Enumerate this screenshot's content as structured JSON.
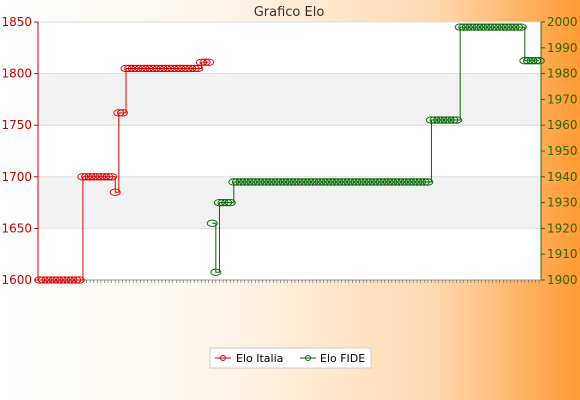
{
  "chart_data": {
    "type": "line",
    "title": "Grafico Elo",
    "xlabel": "",
    "ylabel": "",
    "y_left": {
      "min": 1600,
      "max": 1850,
      "ticks": [
        1600,
        1650,
        1700,
        1750,
        1800,
        1850
      ],
      "color": "#cc0000"
    },
    "y_right": {
      "min": 1900,
      "max": 2000,
      "ticks": [
        1900,
        1910,
        1920,
        1930,
        1940,
        1950,
        1960,
        1970,
        1980,
        1990,
        2000
      ],
      "color": "#336600"
    },
    "grid": true,
    "legend_position": "bottom",
    "x_count": 140,
    "series": [
      {
        "name": "Elo Italia",
        "axis": "left",
        "color": "#dd0000",
        "points": [
          [
            0,
            1600
          ],
          [
            1,
            1600
          ],
          [
            2,
            1600
          ],
          [
            3,
            1600
          ],
          [
            4,
            1600
          ],
          [
            5,
            1600
          ],
          [
            6,
            1600
          ],
          [
            7,
            1600
          ],
          [
            8,
            1600
          ],
          [
            9,
            1600
          ],
          [
            10,
            1600
          ],
          [
            11,
            1600
          ],
          [
            12,
            1700
          ],
          [
            13,
            1700
          ],
          [
            14,
            1700
          ],
          [
            15,
            1700
          ],
          [
            16,
            1700
          ],
          [
            17,
            1700
          ],
          [
            18,
            1700
          ],
          [
            19,
            1700
          ],
          [
            20,
            1700
          ],
          [
            21,
            1685
          ],
          [
            22,
            1762
          ],
          [
            23,
            1762
          ],
          [
            24,
            1805
          ],
          [
            25,
            1805
          ],
          [
            26,
            1805
          ],
          [
            27,
            1805
          ],
          [
            28,
            1805
          ],
          [
            29,
            1805
          ],
          [
            30,
            1805
          ],
          [
            31,
            1805
          ],
          [
            32,
            1805
          ],
          [
            33,
            1805
          ],
          [
            34,
            1805
          ],
          [
            35,
            1805
          ],
          [
            36,
            1805
          ],
          [
            37,
            1805
          ],
          [
            38,
            1805
          ],
          [
            39,
            1805
          ],
          [
            40,
            1805
          ],
          [
            41,
            1805
          ],
          [
            42,
            1805
          ],
          [
            43,
            1805
          ],
          [
            44,
            1805
          ],
          [
            45,
            1811
          ],
          [
            46,
            1811
          ],
          [
            47,
            1811
          ]
        ]
      },
      {
        "name": "Elo FIDE",
        "axis": "right",
        "color": "#006600",
        "points": [
          [
            48,
            1922
          ],
          [
            49,
            1903
          ],
          [
            50,
            1930
          ],
          [
            51,
            1930
          ],
          [
            52,
            1930
          ],
          [
            53,
            1930
          ],
          [
            54,
            1938
          ],
          [
            55,
            1938
          ],
          [
            56,
            1938
          ],
          [
            57,
            1938
          ],
          [
            58,
            1938
          ],
          [
            59,
            1938
          ],
          [
            60,
            1938
          ],
          [
            61,
            1938
          ],
          [
            62,
            1938
          ],
          [
            63,
            1938
          ],
          [
            64,
            1938
          ],
          [
            65,
            1938
          ],
          [
            66,
            1938
          ],
          [
            67,
            1938
          ],
          [
            68,
            1938
          ],
          [
            69,
            1938
          ],
          [
            70,
            1938
          ],
          [
            71,
            1938
          ],
          [
            72,
            1938
          ],
          [
            73,
            1938
          ],
          [
            74,
            1938
          ],
          [
            75,
            1938
          ],
          [
            76,
            1938
          ],
          [
            77,
            1938
          ],
          [
            78,
            1938
          ],
          [
            79,
            1938
          ],
          [
            80,
            1938
          ],
          [
            81,
            1938
          ],
          [
            82,
            1938
          ],
          [
            83,
            1938
          ],
          [
            84,
            1938
          ],
          [
            85,
            1938
          ],
          [
            86,
            1938
          ],
          [
            87,
            1938
          ],
          [
            88,
            1938
          ],
          [
            89,
            1938
          ],
          [
            90,
            1938
          ],
          [
            91,
            1938
          ],
          [
            92,
            1938
          ],
          [
            93,
            1938
          ],
          [
            94,
            1938
          ],
          [
            95,
            1938
          ],
          [
            96,
            1938
          ],
          [
            97,
            1938
          ],
          [
            98,
            1938
          ],
          [
            99,
            1938
          ],
          [
            100,
            1938
          ],
          [
            101,
            1938
          ],
          [
            102,
            1938
          ],
          [
            103,
            1938
          ],
          [
            104,
            1938
          ],
          [
            105,
            1938
          ],
          [
            106,
            1938
          ],
          [
            107,
            1938
          ],
          [
            108,
            1938
          ],
          [
            109,
            1962
          ],
          [
            110,
            1962
          ],
          [
            111,
            1962
          ],
          [
            112,
            1962
          ],
          [
            113,
            1962
          ],
          [
            114,
            1962
          ],
          [
            115,
            1962
          ],
          [
            116,
            1962
          ],
          [
            117,
            1998
          ],
          [
            118,
            1998
          ],
          [
            119,
            1998
          ],
          [
            120,
            1998
          ],
          [
            121,
            1998
          ],
          [
            122,
            1998
          ],
          [
            123,
            1998
          ],
          [
            124,
            1998
          ],
          [
            125,
            1998
          ],
          [
            126,
            1998
          ],
          [
            127,
            1998
          ],
          [
            128,
            1998
          ],
          [
            129,
            1998
          ],
          [
            130,
            1998
          ],
          [
            131,
            1998
          ],
          [
            132,
            1998
          ],
          [
            133,
            1998
          ],
          [
            134,
            1998
          ],
          [
            135,
            1985
          ],
          [
            136,
            1985
          ],
          [
            137,
            1985
          ],
          [
            138,
            1985
          ],
          [
            139,
            1985
          ]
        ]
      }
    ]
  }
}
